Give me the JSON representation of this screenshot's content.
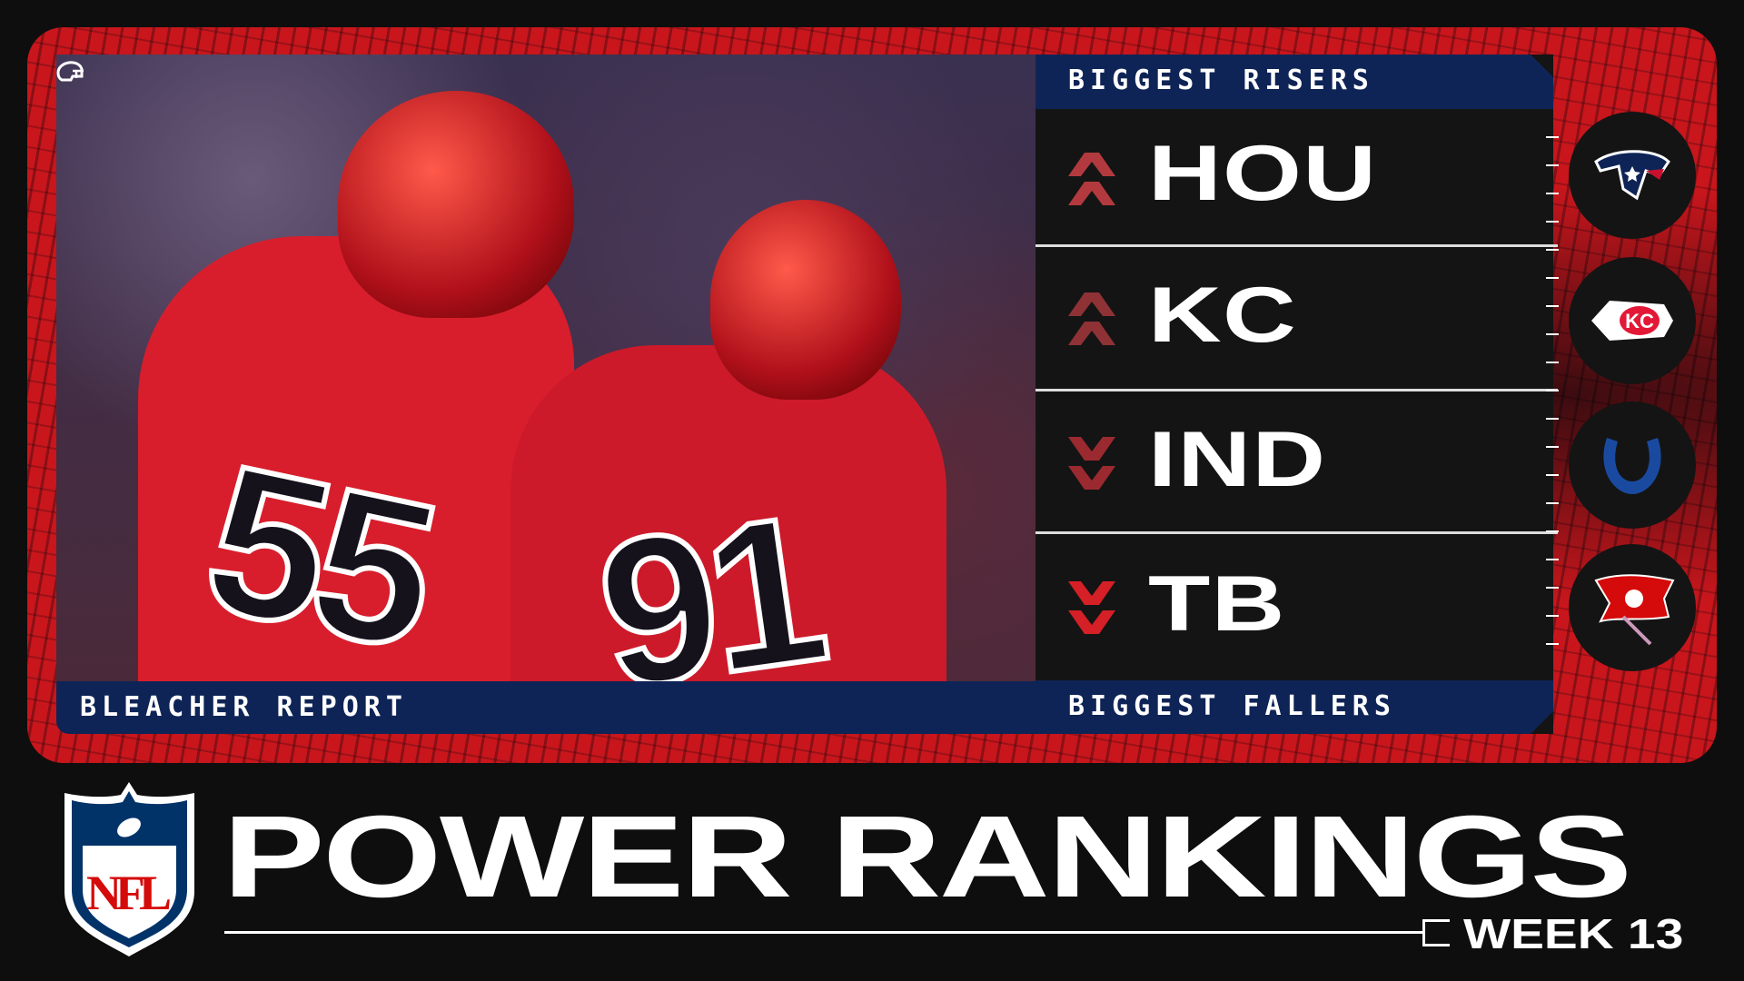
{
  "brand": {
    "footer_label": "BLEACHER REPORT"
  },
  "risers": {
    "title": "BIGGEST RISERS",
    "teams": [
      {
        "abbr": "HOU",
        "direction": "up",
        "logo": "texans-logo"
      },
      {
        "abbr": "KC",
        "direction": "up",
        "logo": "chiefs-logo"
      }
    ]
  },
  "fallers": {
    "title": "BIGGEST FALLERS",
    "teams": [
      {
        "abbr": "IND",
        "direction": "down",
        "logo": "colts-logo"
      },
      {
        "abbr": "TB",
        "direction": "down",
        "logo": "buccaneers-logo"
      }
    ]
  },
  "photo": {
    "jersey_numbers": [
      "55",
      "91"
    ]
  },
  "title": {
    "main": "POWER RANKINGS",
    "week": "WEEK 13",
    "league_logo": "NFL"
  },
  "colors": {
    "red": "#d3161e",
    "navy": "#0f2456",
    "arrow_up": "#b23a3e",
    "arrow_down": "#d42026",
    "background": "#0e0e0e"
  }
}
